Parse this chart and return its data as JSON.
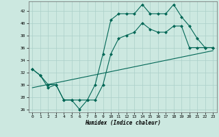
{
  "title": "",
  "xlabel": "Humidex (Indice chaleur)",
  "ylabel": "",
  "xlim": [
    -0.5,
    23.5
  ],
  "ylim": [
    25.5,
    43.5
  ],
  "yticks": [
    26,
    28,
    30,
    32,
    34,
    36,
    38,
    40,
    42
  ],
  "xticks": [
    0,
    1,
    2,
    3,
    4,
    5,
    6,
    7,
    8,
    9,
    10,
    11,
    12,
    13,
    14,
    15,
    16,
    17,
    18,
    19,
    20,
    21,
    22,
    23
  ],
  "bg_color": "#cce8e0",
  "grid_color": "#aacfc8",
  "line_color": "#006655",
  "line1_x": [
    0,
    1,
    2,
    3,
    4,
    5,
    6,
    7,
    8,
    9,
    10,
    11,
    12,
    13,
    14,
    15,
    16,
    17,
    18,
    19,
    20,
    21,
    22,
    23
  ],
  "line1_y": [
    32.5,
    31.5,
    29.5,
    30,
    27.5,
    27.5,
    26,
    27.5,
    30,
    35,
    40.5,
    41.5,
    41.5,
    41.5,
    43,
    41.5,
    41.5,
    41.5,
    43,
    41,
    39.5,
    37.5,
    36,
    36
  ],
  "line2_x": [
    0,
    1,
    2,
    3,
    4,
    5,
    6,
    7,
    8,
    9,
    10,
    11,
    12,
    13,
    14,
    15,
    16,
    17,
    18,
    19,
    20,
    21,
    22,
    23
  ],
  "line2_y": [
    32.5,
    31.5,
    30,
    30,
    27.5,
    27.5,
    27.5,
    27.5,
    27.5,
    30,
    35,
    37.5,
    38,
    38.5,
    40,
    39,
    38.5,
    38.5,
    39.5,
    39.5,
    36,
    36,
    36,
    36
  ],
  "line3_x": [
    0,
    23
  ],
  "line3_y": [
    29.5,
    35.5
  ]
}
